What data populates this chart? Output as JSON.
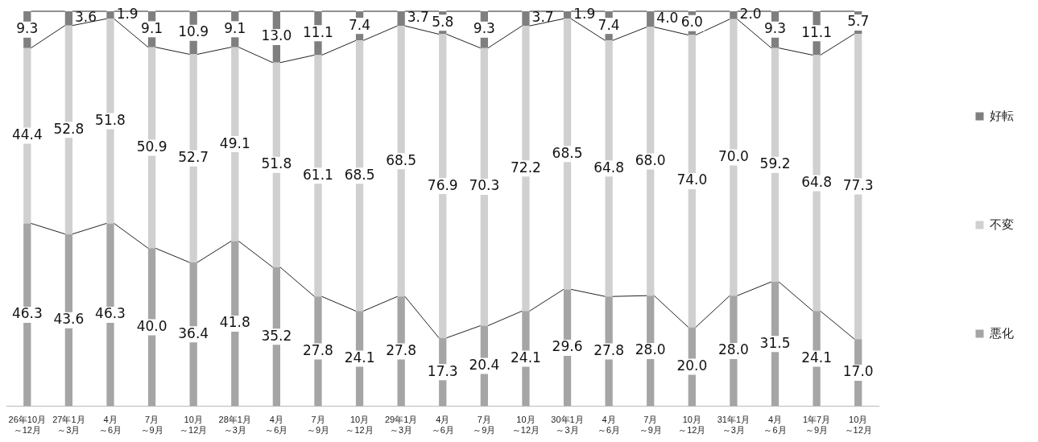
{
  "chart_data": {
    "type": "bar",
    "stacked": true,
    "legend": "right",
    "grid": false,
    "tick_labels": "x",
    "categories": [
      "26年10月～12月",
      "27年1月～3月",
      "4月～6月",
      "7月～9月",
      "10月～12月",
      "28年1月～3月",
      "4月～6月",
      "7月～9月",
      "10月～12月",
      "29年1月～3月",
      "4月～6月",
      "7月～9月",
      "10月～12月",
      "30年1月～3月",
      "4月～6月",
      "7月～9月",
      "10月～12月",
      "31年1月～3月",
      "4月～6月",
      "1年7月～9月",
      "10月～12月"
    ],
    "series": [
      {
        "name": "悪化",
        "color": "#a5a5a5",
        "values": [
          46.3,
          43.6,
          46.3,
          40.0,
          36.4,
          41.8,
          35.2,
          27.8,
          24.1,
          27.8,
          17.3,
          20.4,
          24.1,
          29.6,
          27.8,
          28.0,
          20.0,
          28.0,
          31.5,
          24.1,
          17.0
        ],
        "value_labels": [
          "46.3",
          "43.6",
          "46.3",
          "40.0",
          "36.4",
          "41.8",
          "35.2",
          "27.8",
          "24.1",
          "27.8",
          "17.3",
          "20.4",
          "24.1",
          "29.6",
          "27.8",
          "28.0",
          "20.0",
          "28.0",
          "31.5",
          "24.1",
          "17.0"
        ]
      },
      {
        "name": "不変",
        "color": "#d0d0d0",
        "values": [
          44.4,
          52.8,
          51.8,
          50.9,
          52.7,
          49.1,
          51.8,
          61.1,
          68.5,
          68.5,
          76.9,
          70.3,
          72.2,
          68.5,
          64.8,
          68.0,
          74.0,
          70.0,
          59.2,
          64.8,
          77.3
        ],
        "value_labels": [
          "44.4",
          "52.8",
          "51.8",
          "50.9",
          "52.7",
          "49.1",
          "51.8",
          "61.1",
          "68.5",
          "68.5",
          "76.9",
          "70.3",
          "72.2",
          "68.5",
          "64.8",
          "68.0",
          "74.0",
          "70.0",
          "59.2",
          "64.8",
          "77.3"
        ]
      },
      {
        "name": "好転",
        "color": "#7f7f7f",
        "values": [
          9.3,
          3.6,
          1.9,
          9.1,
          10.9,
          9.1,
          13.0,
          11.1,
          7.4,
          3.7,
          5.8,
          9.3,
          3.7,
          1.9,
          7.4,
          4.0,
          6.0,
          2.0,
          9.3,
          11.1,
          5.7
        ],
        "value_labels": [
          "9.3",
          "3.6",
          "1.9",
          "9.1",
          "10.9",
          "9.1",
          "13.0",
          "11.1",
          "7.4",
          "3.7",
          "5.8",
          "9.3",
          "3.7",
          "1.9",
          "7.4",
          "4.0",
          "6.0",
          "2.0",
          "9.3",
          "11.1",
          "5.7"
        ]
      }
    ]
  }
}
